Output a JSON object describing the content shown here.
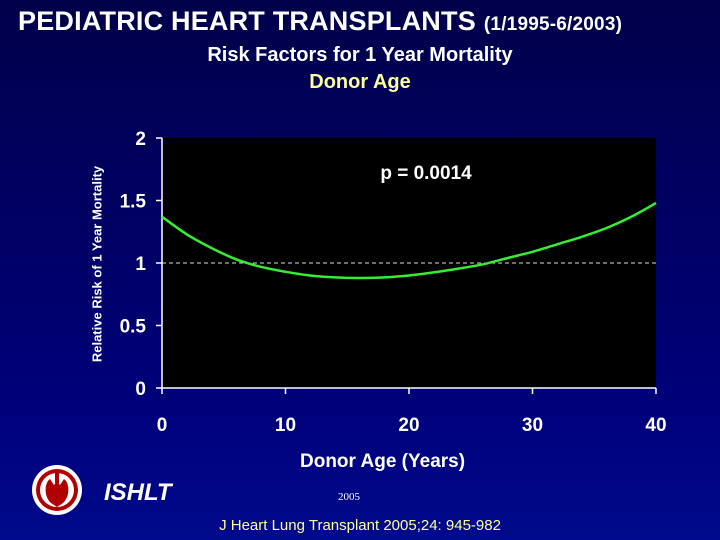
{
  "header": {
    "title": "PEDIATRIC HEART TRANSPLANTS",
    "date_range": "(1/1995-6/2003)",
    "subtitle": "Risk Factors for 1 Year Mortality",
    "subtitle2": "Donor Age"
  },
  "chart_data": {
    "type": "line",
    "title": "Risk Factors for 1 Year Mortality - Donor Age",
    "xlabel": "Donor Age (Years)",
    "ylabel": "Relative Risk of 1 Year Mortality",
    "xlim": [
      0,
      40
    ],
    "ylim": [
      0,
      2
    ],
    "x_ticks": [
      0,
      10,
      20,
      30,
      40
    ],
    "x_tick_labels": [
      "0",
      "10",
      "20",
      "30",
      "40"
    ],
    "y_ticks": [
      0,
      0.5,
      1,
      1.5,
      2
    ],
    "y_tick_labels": [
      "0",
      "0.5",
      "1",
      "1.5",
      "2"
    ],
    "reference_line": 1,
    "annotation": "p = 0.0014",
    "series": [
      {
        "name": "Relative Risk",
        "color": "#33ee33",
        "x": [
          0,
          2,
          4,
          6,
          8,
          10,
          12,
          14,
          16,
          18,
          20,
          22,
          24,
          26,
          28,
          30,
          32,
          34,
          36,
          38,
          40
        ],
        "y": [
          1.37,
          1.23,
          1.12,
          1.03,
          0.97,
          0.93,
          0.9,
          0.885,
          0.88,
          0.885,
          0.9,
          0.925,
          0.955,
          0.99,
          1.04,
          1.09,
          1.15,
          1.21,
          1.28,
          1.37,
          1.48
        ]
      }
    ]
  },
  "footer": {
    "org": "ISHLT",
    "year": "2005",
    "citation": "J Heart Lung Transplant 2005;24: 945-982"
  },
  "colors": {
    "plot_background": "#000000",
    "curve": "#33ee33",
    "subtitle2": "#ffff99",
    "citation": "#ffff99"
  }
}
